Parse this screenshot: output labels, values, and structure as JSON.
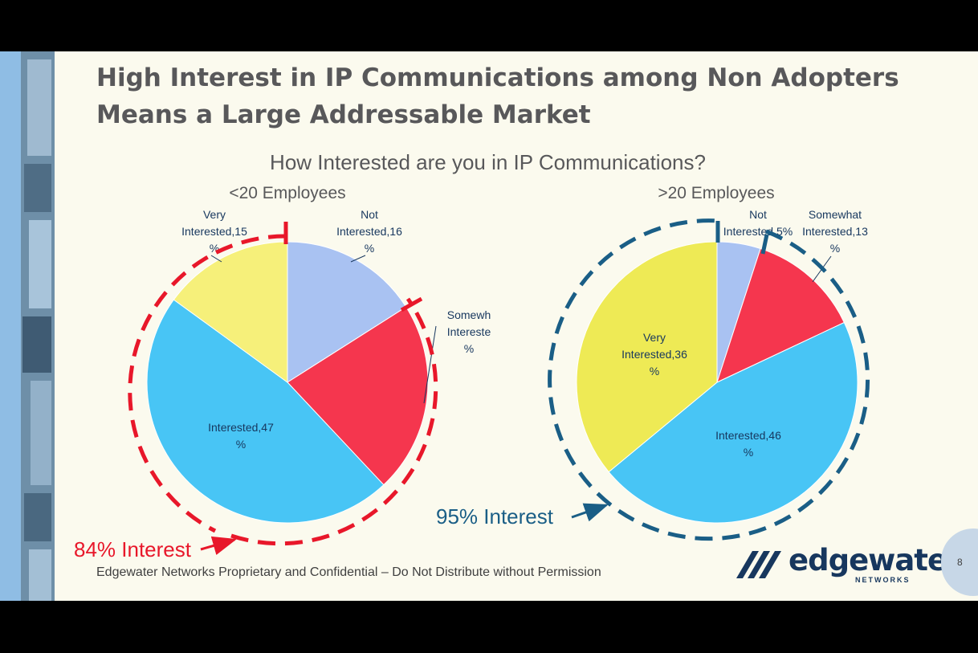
{
  "slide": {
    "title": "High Interest in IP Communications among Non Adopters Means a Large Addressable Market",
    "footer": "Edgewater Networks Proprietary and Confidential – Do Not Distribute without Permission",
    "page_number": "8",
    "logo_text": "edgewater",
    "logo_subtext": "NETWORKS"
  },
  "chart_data": [
    {
      "type": "pie",
      "title": "How Interested are you in IP Communications?",
      "subtitle": "<20 Employees",
      "slices": [
        {
          "label": "Not Interested",
          "value": 16,
          "display": [
            "Not",
            "Interested,16",
            "%"
          ],
          "color": "#a9c2f2"
        },
        {
          "label": "Somewhat Interested",
          "value": 22,
          "display": [
            "Somewh",
            "Intereste",
            "%"
          ],
          "color": "#f5364e"
        },
        {
          "label": "Interested",
          "value": 47,
          "display": [
            "Interested,47",
            "%"
          ],
          "color": "#48c5f5"
        },
        {
          "label": "Very Interested",
          "value": 15,
          "display": [
            "Very",
            "Interested,15",
            "%"
          ],
          "color": "#f6f07a"
        }
      ],
      "annotation": "84% Interest",
      "annotation_color": "#e8172a"
    },
    {
      "type": "pie",
      "subtitle": ">20 Employees",
      "slices": [
        {
          "label": "Not Interested",
          "value": 5,
          "display": [
            "Not",
            "Interested,5%"
          ],
          "color": "#a9c2f2"
        },
        {
          "label": "Somewhat Interested",
          "value": 13,
          "display": [
            "Somewhat",
            "Interested,13",
            "%"
          ],
          "color": "#f5364e"
        },
        {
          "label": "Interested",
          "value": 46,
          "display": [
            "Interested,46",
            "%"
          ],
          "color": "#48c5f5"
        },
        {
          "label": "Very Interested",
          "value": 36,
          "display": [
            "Very",
            "Interested,36",
            "%"
          ],
          "color": "#eeea55"
        }
      ],
      "annotation": "95% Interest",
      "annotation_color": "#1a5e86"
    }
  ]
}
